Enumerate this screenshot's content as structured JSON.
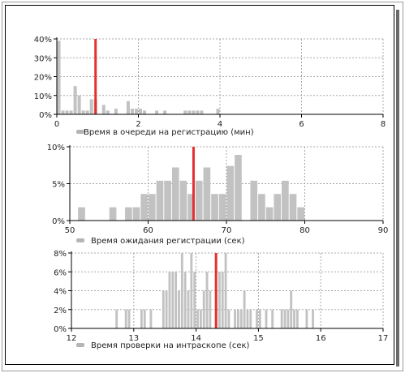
{
  "colors": {
    "bar": "#c2c2c2",
    "mean_line": "#e53030",
    "grid": "#a8a8a8",
    "axis": "#000000",
    "legend_swatch": "#b5b5b5"
  },
  "chart_data": [
    {
      "type": "bar",
      "title": "",
      "xlabel": "Время в очереди на регистрацию (мин)",
      "ylabel": "",
      "xlim": [
        0,
        8
      ],
      "ylim": [
        0,
        40
      ],
      "x_ticks": [
        0,
        2,
        4,
        6,
        8
      ],
      "y_ticks": [
        0,
        10,
        20,
        30,
        40
      ],
      "y_tick_labels": [
        "0%",
        "10%",
        "20%",
        "30%",
        "40%"
      ],
      "grid": true,
      "legend": "bottom-left",
      "bin_width": 0.1,
      "series": [
        {
          "x": [
            0.05,
            0.15,
            0.25,
            0.35,
            0.45,
            0.55,
            0.65,
            0.75,
            0.85,
            0.95,
            1.15,
            1.25,
            1.45,
            1.75,
            1.85,
            1.95,
            2.05,
            2.15,
            2.45,
            2.65,
            3.15,
            3.25,
            3.35,
            3.45,
            3.55,
            3.95
          ],
          "values": [
            39,
            2,
            2,
            2,
            15,
            10,
            2,
            2,
            8,
            8,
            5,
            2,
            3,
            7,
            3,
            3,
            3,
            2,
            2,
            2,
            2,
            2,
            2,
            2,
            2,
            3
          ]
        }
      ],
      "mean": 0.95
    },
    {
      "type": "bar",
      "title": "",
      "xlabel": "Время ожидания регистрации (сек)",
      "ylabel": "",
      "xlim": [
        50,
        90
      ],
      "ylim": [
        0,
        10
      ],
      "x_ticks": [
        50,
        60,
        70,
        80,
        90
      ],
      "y_ticks": [
        0,
        5,
        10
      ],
      "y_tick_labels": [
        "0%",
        "5%",
        "10%"
      ],
      "grid": true,
      "legend": "bottom-left",
      "bin_width": 1,
      "series": [
        {
          "x": [
            51.5,
            55.5,
            57.5,
            58.5,
            59.5,
            60.5,
            61.5,
            62.5,
            63.5,
            64.5,
            65.5,
            66.5,
            67.5,
            68.5,
            69.5,
            70.5,
            71.5,
            73.5,
            74.5,
            75.5,
            76.5,
            77.5,
            78.5,
            79.5
          ],
          "values": [
            1.8,
            1.8,
            1.8,
            1.8,
            3.6,
            3.6,
            5.4,
            5.4,
            7.2,
            5.4,
            3.6,
            5.4,
            7.2,
            3.6,
            3.6,
            7.4,
            8.9,
            5.4,
            3.6,
            1.8,
            3.6,
            5.4,
            3.6,
            1.8
          ]
        }
      ],
      "mean": 65.8
    },
    {
      "type": "bar",
      "title": "",
      "xlabel": "Время проверки на интраскопе (сек)",
      "ylabel": "",
      "xlim": [
        12,
        17
      ],
      "ylim": [
        0,
        8
      ],
      "x_ticks": [
        12,
        13,
        14,
        15,
        16,
        17
      ],
      "y_ticks": [
        0,
        2,
        4,
        6,
        8
      ],
      "y_tick_labels": [
        "0%",
        "2%",
        "4%",
        "6%",
        "8%"
      ],
      "grid": true,
      "legend": "bottom-left",
      "bin_width": 0.05,
      "series": [
        {
          "x": [
            12.725,
            12.875,
            12.925,
            13.125,
            13.175,
            13.275,
            13.475,
            13.525,
            13.575,
            13.625,
            13.675,
            13.725,
            13.775,
            13.825,
            13.875,
            13.925,
            13.975,
            14.025,
            14.075,
            14.125,
            14.175,
            14.225,
            14.325,
            14.375,
            14.425,
            14.475,
            14.525,
            14.625,
            14.675,
            14.725,
            14.775,
            14.825,
            14.875,
            14.975,
            15.025,
            15.125,
            15.225,
            15.375,
            15.425,
            15.475,
            15.525,
            15.575,
            15.625,
            15.775,
            15.875
          ],
          "values": [
            2,
            2,
            2,
            2,
            2,
            2,
            4,
            4,
            6,
            6,
            6,
            4,
            8,
            6,
            4,
            8,
            6,
            2,
            2,
            4,
            6,
            4,
            4,
            6,
            6,
            8,
            2,
            2,
            2,
            2,
            4,
            2,
            2,
            2,
            2,
            2,
            2,
            2,
            2,
            2,
            4,
            2,
            2,
            2,
            2
          ]
        }
      ],
      "mean": 14.32
    }
  ]
}
